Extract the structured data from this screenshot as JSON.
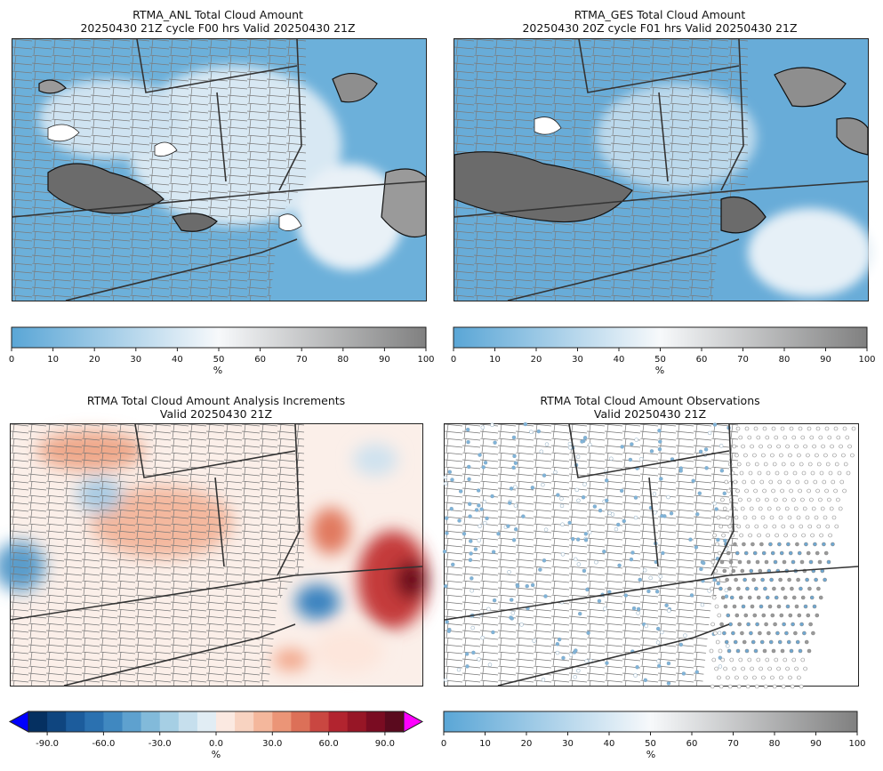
{
  "panels": [
    {
      "title_line1": "RTMA_ANL Total Cloud Amount",
      "title_line2": "20250430 21Z cycle F00 hrs Valid 20250430 21Z"
    },
    {
      "title_line1": "RTMA_GES Total Cloud Amount",
      "title_line2": "20250430 20Z cycle F01 hrs Valid 20250430 21Z"
    },
    {
      "title_line1": "RTMA Total Cloud Amount Analysis Increments",
      "title_line2": "Valid 20250430 21Z"
    },
    {
      "title_line1": "RTMA Total Cloud Amount Observations",
      "title_line2": "Valid 20250430 21Z"
    }
  ],
  "chart_data": [
    {
      "type": "heatmap",
      "title": "RTMA_ANL Total Cloud Amount",
      "subtitle": "20250430 21Z cycle F00 hrs Valid 20250430 21Z",
      "colorbar": {
        "min": 0,
        "max": 100,
        "ticks": [
          0,
          10,
          20,
          30,
          40,
          50,
          60,
          70,
          80,
          90,
          100
        ],
        "label": "%",
        "colormap": "blue-white-gray"
      }
    },
    {
      "type": "heatmap",
      "title": "RTMA_GES Total Cloud Amount",
      "subtitle": "20250430 20Z cycle F01 hrs Valid 20250430 21Z",
      "colorbar": {
        "min": 0,
        "max": 100,
        "ticks": [
          0,
          10,
          20,
          30,
          40,
          50,
          60,
          70,
          80,
          90,
          100
        ],
        "label": "%",
        "colormap": "blue-white-gray"
      }
    },
    {
      "type": "heatmap",
      "title": "RTMA Total Cloud Amount Analysis Increments",
      "subtitle": "Valid 20250430 21Z",
      "colorbar": {
        "min": -100,
        "max": 100,
        "ticks": [
          "-90.0",
          "-60.0",
          "-30.0",
          "0.0",
          "30.0",
          "60.0",
          "90.0"
        ],
        "tick_values": [
          -90,
          -60,
          -30,
          0,
          30,
          60,
          90
        ],
        "label": "%",
        "colormap": "RdBu_r",
        "extend": "both",
        "under_color": "#0000ff",
        "over_color": "#ff00ff"
      }
    },
    {
      "type": "scatter",
      "title": "RTMA Total Cloud Amount Observations",
      "subtitle": "Valid 20250430 21Z",
      "colorbar": {
        "min": 0,
        "max": 100,
        "ticks": [
          0,
          10,
          20,
          30,
          40,
          50,
          60,
          70,
          80,
          90,
          100
        ],
        "label": "%",
        "colormap": "blue-white-gray"
      }
    }
  ],
  "colors": {
    "blue": "#5aa6d6",
    "white": "#f7f7f7",
    "gray": "#808080",
    "inc_blue": "#2166ac",
    "inc_red": "#b2182b",
    "inc_dark_red": "#67001f",
    "inc_dark_blue": "#053061"
  }
}
